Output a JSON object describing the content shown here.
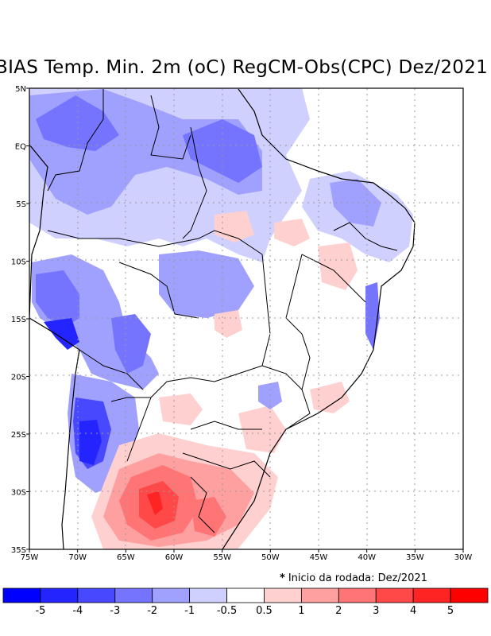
{
  "title": "BIAS Temp. Min. 2m (oC) RegCM-Obs(CPC) Dez/2021",
  "map": {
    "region": "Brazil / South America",
    "lon_range": [
      -75,
      -30
    ],
    "lat_range": [
      -35,
      5
    ],
    "x_ticks": [
      "75W",
      "70W",
      "65W",
      "60W",
      "55W",
      "50W",
      "45W",
      "40W",
      "35W",
      "30W"
    ],
    "y_ticks": [
      "5N",
      "EQ",
      "5S",
      "10S",
      "15S",
      "20S",
      "25S",
      "30S",
      "35S"
    ],
    "grid": "dotted"
  },
  "note": {
    "symbol": "*",
    "text": "Inicio da rodada: Dez/2021"
  },
  "colorbar": {
    "labels": [
      "-5",
      "-4",
      "-3",
      "-2",
      "-1",
      "-0.5",
      "0.5",
      "1",
      "2",
      "3",
      "4",
      "5"
    ],
    "colors": [
      "#0000ff",
      "#2424ff",
      "#4848ff",
      "#7474ff",
      "#a0a0ff",
      "#d0d0ff",
      "#ffffff",
      "#ffd0d0",
      "#ffa0a0",
      "#ff7474",
      "#ff4848",
      "#ff2424",
      "#ff0000"
    ]
  }
}
